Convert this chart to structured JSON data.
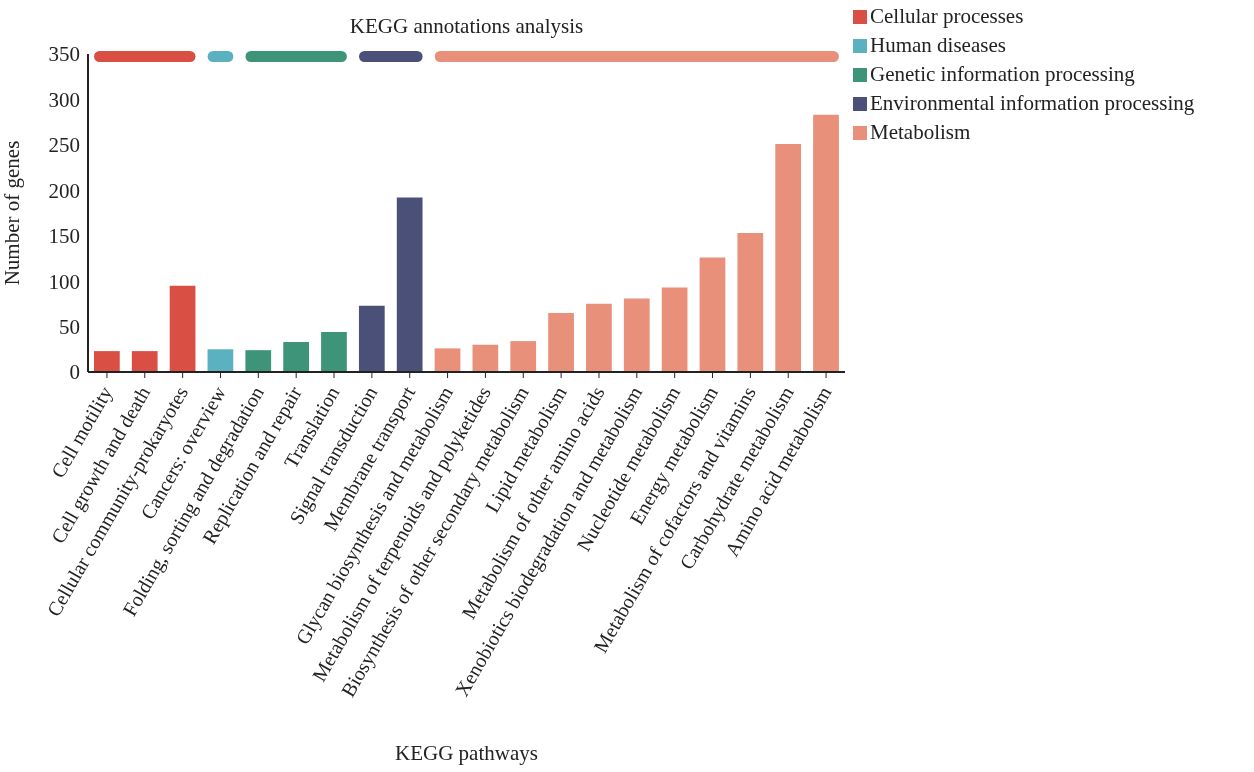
{
  "chart_data": {
    "type": "bar",
    "title": "KEGG annotations analysis",
    "xlabel": "KEGG pathways",
    "ylabel": "Number of genes",
    "categories": [
      "Cell motility",
      "Cell growth and death",
      "Cellular community-prokaryotes",
      "Cancers: overview",
      "Folding, sorting and degradation",
      "Replication and repair",
      "Translation",
      "Signal transduction",
      "Membrane transport",
      "Glycan biosynthesis and metabolism",
      "Metabolism of terpenoids and polyketides",
      "Biosynthesis of other secondary metabolism",
      "Lipid metabolism",
      "Metabolism of other amino acids",
      "Xenobiotics biodegradation and metabolism",
      "Nucleotide metabolism",
      "Energy metabolism",
      "Metabolism of cofactors and vitamins",
      "Carbohydrate metabolism",
      "Amino acid metabolism"
    ],
    "stacked": true,
    "series": [
      {
        "name": "Cellular processes",
        "color": "#d94f43",
        "values": [
          23,
          23,
          95,
          null,
          null,
          null,
          null,
          null,
          null,
          null,
          null,
          null,
          null,
          null,
          null,
          null,
          null,
          null,
          null,
          null
        ]
      },
      {
        "name": "Human diseases",
        "color": "#5bb1c0",
        "values": [
          null,
          null,
          null,
          25,
          null,
          null,
          null,
          null,
          null,
          null,
          null,
          null,
          null,
          null,
          null,
          null,
          null,
          null,
          null,
          null
        ]
      },
      {
        "name": "Genetic information processing",
        "color": "#3e9478",
        "values": [
          null,
          null,
          null,
          null,
          24,
          33,
          44,
          null,
          null,
          null,
          null,
          null,
          null,
          null,
          null,
          null,
          null,
          null,
          null,
          null
        ]
      },
      {
        "name": "Environmental information processing",
        "color": "#4b5078",
        "values": [
          null,
          null,
          null,
          null,
          null,
          null,
          null,
          73,
          192,
          null,
          null,
          null,
          null,
          null,
          null,
          null,
          null,
          null,
          null,
          null
        ]
      },
      {
        "name": "Metabolism",
        "color": "#e8907a",
        "values": [
          null,
          null,
          null,
          null,
          null,
          null,
          null,
          null,
          null,
          26,
          30,
          34,
          65,
          75,
          81,
          93,
          126,
          153,
          251,
          283
        ]
      }
    ],
    "ylim": [
      0,
      350
    ],
    "yticks": [
      0,
      50,
      100,
      150,
      200,
      250,
      300,
      350
    ],
    "grid": false,
    "legend": "top right"
  }
}
